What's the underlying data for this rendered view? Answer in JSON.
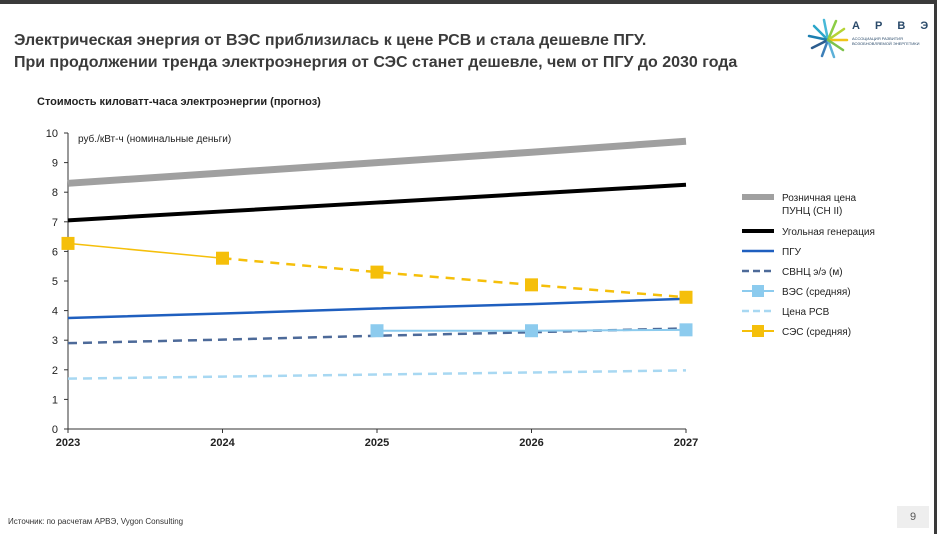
{
  "header": {
    "title_line1": "Электрическая энергия от ВЭС приблизилась к цене РСВ и стала дешевле ПГУ.",
    "title_line2": "При продолжении тренда электроэнергия от СЭС станет дешевле, чем от ПГУ до 2030 года"
  },
  "logo": {
    "name": "А Р В Э",
    "subtitle_line1": "АССОЦИАЦИЯ РАЗВИТИЯ",
    "subtitle_line2": "ВОЗОБНОВЛЯЕМОЙ ЭНЕРГЕТИКИ"
  },
  "footer": {
    "source": "Источник: по расчетам АРВЭ, Vygon Consulting",
    "page_number": "9"
  },
  "chart_data": {
    "type": "line",
    "title": "Стоимость киловатт-часа электроэнергии (прогноз)",
    "unit_label": "руб./кВт-ч (номинальные деньги)",
    "x": [
      "2023",
      "2024",
      "2025",
      "2026",
      "2027"
    ],
    "ylim": [
      0,
      10
    ],
    "yticks": [
      "0",
      "1",
      "2",
      "3",
      "4",
      "5",
      "6",
      "7",
      "8",
      "9",
      "10"
    ],
    "grid": false,
    "legend_position": "right",
    "series": [
      {
        "name": "Розничная цена ПУНЦ (СН II)",
        "color": "#a0a0a0",
        "style": "solid",
        "width": 7,
        "marker": "none",
        "values": [
          8.3,
          8.65,
          9.0,
          9.35,
          9.72
        ]
      },
      {
        "name": "Угольная генерация",
        "color": "#000000",
        "style": "solid",
        "width": 4,
        "marker": "none",
        "values": [
          7.05,
          7.35,
          7.65,
          7.95,
          8.25
        ]
      },
      {
        "name": "ПГУ",
        "color": "#1f5fbf",
        "style": "solid",
        "width": 2.5,
        "marker": "none",
        "values": [
          3.75,
          3.9,
          4.07,
          4.22,
          4.4
        ]
      },
      {
        "name": "СВНЦ э/э (м)",
        "color": "#4d6a99",
        "style": "dashed",
        "width": 2.5,
        "marker": "none",
        "values": [
          2.9,
          3.02,
          3.15,
          3.27,
          3.4
        ]
      },
      {
        "name": "ВЭС (средняя)",
        "color": "#8ccbee",
        "style": "solid",
        "width": 2,
        "marker": "square",
        "values": [
          null,
          null,
          3.32,
          3.32,
          3.35
        ]
      },
      {
        "name": "Цена РСВ",
        "color": "#a8d8f2",
        "style": "dashed",
        "width": 2.5,
        "marker": "none",
        "values": [
          1.7,
          1.77,
          1.84,
          1.91,
          1.98
        ]
      },
      {
        "name": "СЭС (средняя)",
        "color": "#f5bf0a",
        "style": "mixed",
        "width": 2,
        "marker": "square",
        "values": [
          6.27,
          5.77,
          5.3,
          4.87,
          4.45
        ]
      }
    ]
  }
}
